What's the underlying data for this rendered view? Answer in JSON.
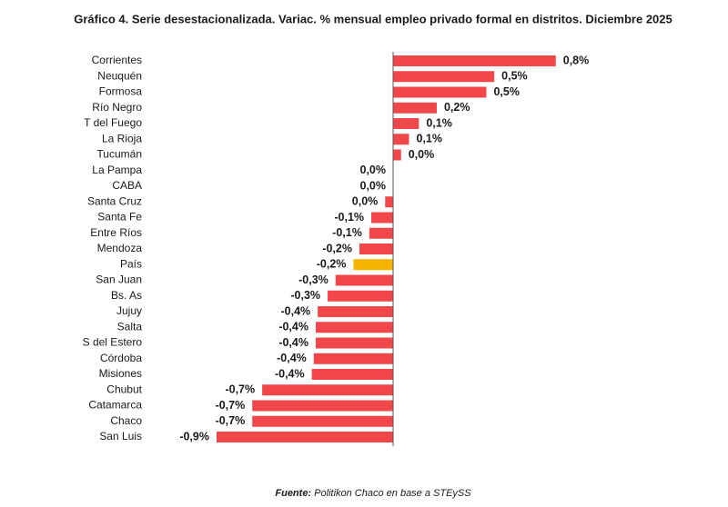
{
  "chart_data": {
    "type": "hbar",
    "title": "Gráfico 4. Serie desestacionalizada. Variac. % mensual empleo privado formal en distritos. Diciembre 2025",
    "categories": [
      "Corrientes",
      "Neuquén",
      "Formosa",
      "Río Negro",
      "T del Fuego",
      "La Rioja",
      "Tucumán",
      "La Pampa",
      "CABA",
      "Santa Cruz",
      "Santa Fe",
      "Entre Ríos",
      "Mendoza",
      "País",
      "San Juan",
      "Bs. As",
      "Jujuy",
      "Salta",
      "S del Estero",
      "Córdoba",
      "Misiones",
      "Chubut",
      "Catamarca",
      "Chaco",
      "San Luis"
    ],
    "values": [
      0.82,
      0.51,
      0.47,
      0.22,
      0.13,
      0.08,
      0.04,
      0,
      0,
      -0.04,
      -0.11,
      -0.12,
      -0.17,
      -0.2,
      -0.29,
      -0.33,
      -0.38,
      -0.39,
      -0.39,
      -0.4,
      -0.41,
      -0.66,
      -0.71,
      -0.71,
      -0.89
    ],
    "value_labels": [
      "0,8%",
      "0,5%",
      "0,5%",
      "0,2%",
      "0,1%",
      "0,1%",
      "0,0%",
      "0,0%",
      "0,0%",
      "0,0%",
      "-0,1%",
      "-0,1%",
      "-0,2%",
      "-0,2%",
      "-0,3%",
      "-0,3%",
      "-0,4%",
      "-0,4%",
      "-0,4%",
      "-0,4%",
      "-0,4%",
      "-0,7%",
      "-0,7%",
      "-0,7%",
      "-0,9%"
    ],
    "colors": [
      "#f2474a",
      "#f2474a",
      "#f2474a",
      "#f2474a",
      "#f2474a",
      "#f2474a",
      "#f2474a",
      "#f2474a",
      "#f2474a",
      "#f2474a",
      "#f2474a",
      "#f2474a",
      "#f2474a",
      "#f5b400",
      "#f2474a",
      "#f2474a",
      "#f2474a",
      "#f2474a",
      "#f2474a",
      "#f2474a",
      "#f2474a",
      "#f2474a",
      "#f2474a",
      "#f2474a",
      "#f2474a"
    ],
    "xlim": [
      -1,
      1
    ],
    "source_label": "Fuente:",
    "source": "Politikon Chaco en base a STEySS"
  }
}
